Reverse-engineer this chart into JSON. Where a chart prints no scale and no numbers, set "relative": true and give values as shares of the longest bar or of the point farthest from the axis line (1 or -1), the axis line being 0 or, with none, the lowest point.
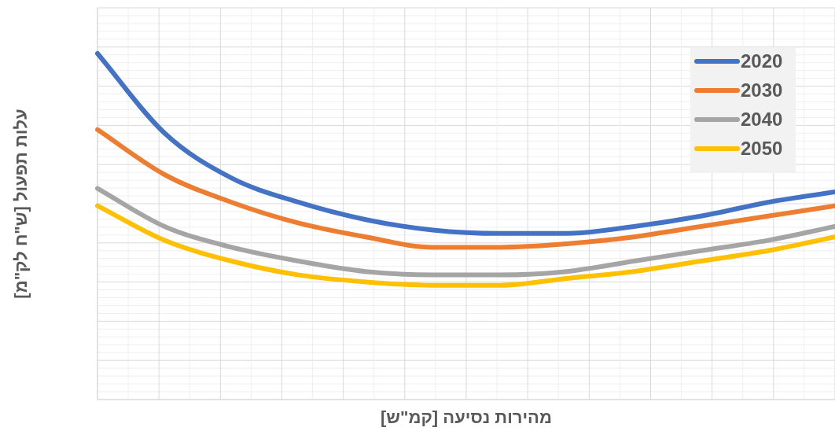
{
  "chart_data": {
    "type": "line",
    "relative": true,
    "xlabel": "מהירות נסיעה [קמ\"ש]",
    "ylabel": "עלות תפעול [ש\"ח לק\"מ]",
    "categories": [
      null,
      null,
      null,
      null,
      null,
      null,
      null,
      null,
      null,
      null,
      null,
      null
    ],
    "grid": true,
    "legend": "top right",
    "marker": "none",
    "line_style": "solid",
    "series": [
      {
        "name": "2020",
        "color": "#4472c4",
        "values": [
          1.0,
          0.77,
          0.64,
          0.57,
          0.52,
          0.49,
          0.48,
          0.48,
          0.5,
          0.53,
          0.57,
          0.6
        ]
      },
      {
        "name": "2030",
        "color": "#ed7d31",
        "values": [
          0.78,
          0.65,
          0.57,
          0.51,
          0.47,
          0.44,
          0.44,
          0.45,
          0.47,
          0.5,
          0.53,
          0.56
        ]
      },
      {
        "name": "2040",
        "color": "#a5a5a5",
        "values": [
          0.61,
          0.5,
          0.44,
          0.4,
          0.37,
          0.36,
          0.36,
          0.37,
          0.4,
          0.43,
          0.46,
          0.5
        ]
      },
      {
        "name": "2050",
        "color": "#ffc000",
        "values": [
          0.56,
          0.46,
          0.4,
          0.36,
          0.34,
          0.33,
          0.33,
          0.35,
          0.37,
          0.4,
          0.43,
          0.47
        ]
      }
    ]
  }
}
